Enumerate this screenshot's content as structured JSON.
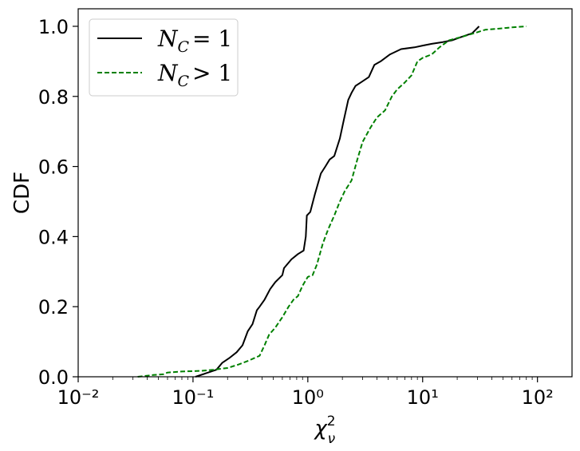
{
  "chart_data": {
    "type": "line",
    "xscale": "log",
    "xlim": [
      0.01,
      200
    ],
    "ylim": [
      0.0,
      1.05
    ],
    "xlabel": "χ²ν",
    "ylabel": "CDF",
    "x_ticks": [
      {
        "value": 0.01,
        "label": "10⁻²"
      },
      {
        "value": 0.1,
        "label": "10⁻¹"
      },
      {
        "value": 1,
        "label": "10⁰"
      },
      {
        "value": 10,
        "label": "10¹"
      },
      {
        "value": 100,
        "label": "10²"
      }
    ],
    "y_ticks": [
      {
        "value": 0.0,
        "label": "0.0"
      },
      {
        "value": 0.2,
        "label": "0.2"
      },
      {
        "value": 0.4,
        "label": "0.4"
      },
      {
        "value": 0.6,
        "label": "0.6"
      },
      {
        "value": 0.8,
        "label": "0.8"
      },
      {
        "value": 1.0,
        "label": "1.0"
      }
    ],
    "legend": {
      "position": "upper-left"
    },
    "series": [
      {
        "name": "N_C = 1",
        "color": "#000000",
        "style": "solid",
        "x": [
          0.105,
          0.13,
          0.16,
          0.18,
          0.21,
          0.24,
          0.27,
          0.3,
          0.33,
          0.36,
          0.38,
          0.42,
          0.47,
          0.52,
          0.6,
          0.62,
          0.72,
          0.82,
          0.92,
          0.96,
          0.98,
          1.05,
          1.15,
          1.3,
          1.42,
          1.55,
          1.7,
          1.9,
          2.05,
          2.25,
          2.4,
          2.6,
          2.9,
          3.4,
          3.8,
          4.3,
          5.2,
          6.5,
          8.5,
          10.0,
          12.0,
          15.0,
          18.0,
          22.0,
          27.0,
          31.0
        ],
        "y": [
          0.0,
          0.01,
          0.02,
          0.04,
          0.055,
          0.07,
          0.09,
          0.13,
          0.15,
          0.19,
          0.2,
          0.22,
          0.25,
          0.27,
          0.29,
          0.31,
          0.335,
          0.35,
          0.36,
          0.4,
          0.46,
          0.47,
          0.52,
          0.58,
          0.6,
          0.62,
          0.63,
          0.68,
          0.73,
          0.79,
          0.81,
          0.83,
          0.84,
          0.855,
          0.89,
          0.9,
          0.92,
          0.935,
          0.94,
          0.945,
          0.95,
          0.955,
          0.96,
          0.97,
          0.98,
          1.0
        ]
      },
      {
        "name": "N_C > 1",
        "color": "#008000",
        "style": "dashed",
        "x": [
          0.033,
          0.045,
          0.055,
          0.06,
          0.08,
          0.12,
          0.15,
          0.2,
          0.25,
          0.3,
          0.38,
          0.42,
          0.46,
          0.52,
          0.6,
          0.68,
          0.75,
          0.82,
          0.9,
          1.0,
          1.1,
          1.2,
          1.35,
          1.5,
          1.7,
          1.9,
          2.1,
          2.4,
          2.7,
          3.0,
          3.5,
          4.0,
          4.7,
          5.4,
          6.0,
          7.0,
          8.0,
          9.0,
          10.0,
          12.0,
          14.0,
          17.0,
          22.0,
          28.0,
          35.0,
          45.0,
          60.0,
          80.0
        ],
        "y": [
          0.0,
          0.005,
          0.007,
          0.012,
          0.015,
          0.017,
          0.02,
          0.025,
          0.035,
          0.045,
          0.06,
          0.09,
          0.12,
          0.14,
          0.17,
          0.2,
          0.22,
          0.23,
          0.26,
          0.285,
          0.29,
          0.32,
          0.38,
          0.42,
          0.46,
          0.5,
          0.53,
          0.56,
          0.62,
          0.67,
          0.71,
          0.74,
          0.76,
          0.8,
          0.82,
          0.84,
          0.86,
          0.9,
          0.91,
          0.92,
          0.94,
          0.96,
          0.97,
          0.98,
          0.99,
          0.993,
          0.997,
          1.0
        ]
      }
    ]
  }
}
